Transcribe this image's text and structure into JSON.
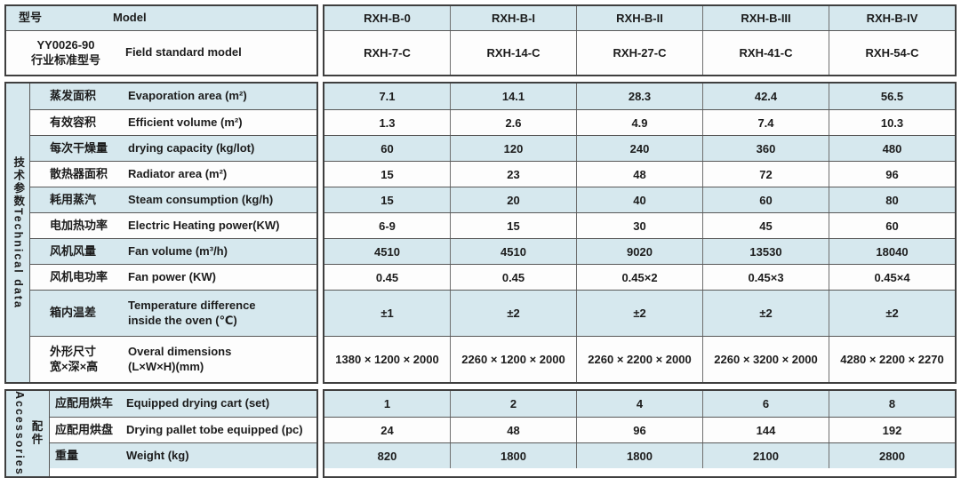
{
  "colors": {
    "row_blue": "#d6e8ee",
    "row_white": "#fdfdfd",
    "border_dark": "#3f3f3f",
    "text": "#1c1c1c"
  },
  "header": {
    "model_cn": "型号",
    "model_en": "Model",
    "model_values": [
      "RXH-B-0",
      "RXH-B-I",
      "RXH-B-II",
      "RXH-B-III",
      "RXH-B-IV"
    ],
    "std_cn": "YY0026-90\n行业标准型号",
    "std_en": "Field standard model",
    "std_values": [
      "RXH-7-C",
      "RXH-14-C",
      "RXH-27-C",
      "RXH-41-C",
      "RXH-54-C"
    ]
  },
  "technical": {
    "band": "技术参数Technical data",
    "rows": [
      {
        "cn": "蒸发面积",
        "en": "Evaporation area (m²)",
        "values": [
          "7.1",
          "14.1",
          "28.3",
          "42.4",
          "56.5"
        ]
      },
      {
        "cn": "有效容积",
        "en": "Efficient volume (m²)",
        "values": [
          "1.3",
          "2.6",
          "4.9",
          "7.4",
          "10.3"
        ]
      },
      {
        "cn": "每次干燥量",
        "en": "drying capacity (kg/lot)",
        "values": [
          "60",
          "120",
          "240",
          "360",
          "480"
        ]
      },
      {
        "cn": "散热器面积",
        "en": "Radiator area (m²)",
        "values": [
          "15",
          "23",
          "48",
          "72",
          "96"
        ]
      },
      {
        "cn": "耗用蒸汽",
        "en": "Steam consumption (kg/h)",
        "values": [
          "15",
          "20",
          "40",
          "60",
          "80"
        ]
      },
      {
        "cn": "电加热功率",
        "en": "Electric Heating power(KW)",
        "values": [
          "6-9",
          "15",
          "30",
          "45",
          "60"
        ]
      },
      {
        "cn": "风机风量",
        "en": "Fan volume (m³/h)",
        "values": [
          "4510",
          "4510",
          "9020",
          "13530",
          "18040"
        ]
      },
      {
        "cn": "风机电功率",
        "en": "Fan power (KW)",
        "values": [
          "0.45",
          "0.45",
          "0.45×2",
          "0.45×3",
          "0.45×4"
        ]
      },
      {
        "cn": "箱内温差",
        "en": "Temperature difference\ninside the oven (℃)",
        "values": [
          "±1",
          "±2",
          "±2",
          "±2",
          "±2"
        ]
      },
      {
        "cn": "外形尺寸\n宽×深×高",
        "en": "Overal dimensions\n(L×W×H)(mm)",
        "values": [
          "1380 × 1200 × 2000",
          "2260 × 1200 × 2000",
          "2260 × 2200 × 2000",
          "2260 × 3200 × 2000",
          "4280 × 2200 × 2270"
        ]
      }
    ]
  },
  "accessories": {
    "band_en": "Accessories",
    "band_cn": "配件",
    "rows": [
      {
        "cn": "应配用烘车",
        "en": "Equipped drying cart (set)",
        "values": [
          "1",
          "2",
          "4",
          "6",
          "8"
        ]
      },
      {
        "cn": "应配用烘盘",
        "en": "Drying pallet tobe equipped (pc)",
        "values": [
          "24",
          "48",
          "96",
          "144",
          "192"
        ]
      },
      {
        "cn": "重量",
        "en": "Weight (kg)",
        "values": [
          "820",
          "1800",
          "1800",
          "2100",
          "2800"
        ]
      }
    ]
  }
}
